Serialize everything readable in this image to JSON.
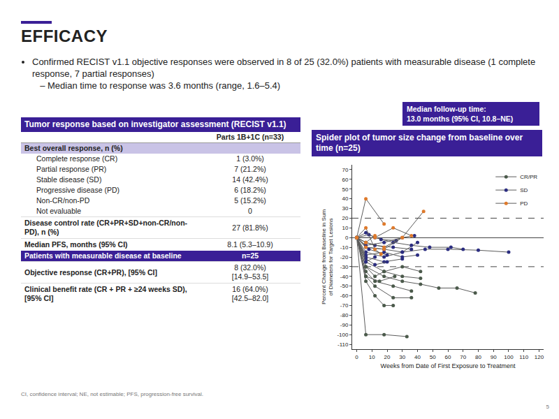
{
  "slide": {
    "title": "EFFICACY",
    "bullets": [
      {
        "text": "Confirmed RECIST v1.1 objective responses were observed in 8 of 25 (32.0%) patients with measurable disease (1 complete response, 7 partial responses)",
        "sub": [
          "Median time to response was 3.6 months (range, 1.6–5.4)"
        ]
      }
    ],
    "followup_box": [
      "Median follow-up time:",
      "13.0 months (95% CI, 10.8–NE)"
    ],
    "table": {
      "title": "Tumor response based on investigator assessment (RECIST v1.1)",
      "column_header": "Parts 1B+1C (n=33)",
      "sections": [
        {
          "heading": "Best overall response, n (%)",
          "items": [
            {
              "label": "Complete response (CR)",
              "value": [
                "1 (3.0%)"
              ]
            },
            {
              "label": "Partial response (PR)",
              "value": [
                "7 (21.2%)"
              ]
            },
            {
              "label": "Stable disease (SD)",
              "value": [
                "14 (42.4%)"
              ]
            },
            {
              "label": "Progressive disease (PD)",
              "value": [
                "6 (18.2%)"
              ]
            },
            {
              "label": "Non-CR/non-PD",
              "value": [
                "5 (15.2%)"
              ]
            },
            {
              "label": "Not evaluable",
              "value": [
                "0"
              ]
            }
          ],
          "rows": [
            {
              "label": "Disease control rate (CR+PR+SD+non-CR/non-PD), n (%)",
              "value": [
                "27 (81.8%)"
              ]
            },
            {
              "label": "Median PFS, months (95% CI)",
              "value": [
                "8.1 (5.3–10.9)"
              ]
            }
          ]
        },
        {
          "heading": "Patients with measurable disease at baseline",
          "heading_value": "n=25",
          "items": [],
          "rows": [
            {
              "label": "Objective response (CR+PR), [95% CI]",
              "value": [
                "8 (32.0%)",
                "[14.9–53.5]"
              ]
            },
            {
              "label": "Clinical benefit rate (CR + PR + ≥24 weeks SD), [95% CI]",
              "value": [
                "16 (64.0%)",
                "[42.5–82.0]"
              ]
            }
          ]
        }
      ]
    },
    "footnote": "CI, confidence interval; NE, not estimable; PFS, progression-free survival.",
    "page_number": "5"
  },
  "chart_data": {
    "type": "line",
    "title": "Spider plot of tumor size change from baseline over time (n=25)",
    "x_label": "Weeks from Date of First Exposure to Treatment",
    "y_label": "Percent Change from Baseline in Sum of Diameters for Target Lesions",
    "xlim": [
      -3,
      123
    ],
    "xticks": [
      0,
      10,
      20,
      30,
      40,
      50,
      60,
      70,
      80,
      90,
      100,
      110,
      120
    ],
    "ylim": [
      -115,
      75
    ],
    "yticks": [
      -110,
      -100,
      -90,
      -80,
      -70,
      -60,
      -50,
      -40,
      -30,
      -20,
      -10,
      0,
      10,
      20,
      30,
      40,
      50,
      60,
      70
    ],
    "reference_lines": [
      20,
      -30
    ],
    "grid": false,
    "legend": "top right",
    "marker": "circle",
    "series": [
      {
        "name": "CR/PR",
        "color": "#4b5a4b",
        "x": [
          0,
          6,
          18,
          33
        ],
        "values": [
          0,
          -100,
          -100,
          -102
        ]
      },
      {
        "name": "CR/PR",
        "color": "#4b5a4b",
        "x": [
          0,
          6,
          12,
          18,
          24
        ],
        "values": [
          0,
          -45,
          -60,
          -70,
          -70
        ]
      },
      {
        "name": "CR/PR",
        "color": "#4b5a4b",
        "x": [
          0,
          6,
          12,
          24,
          36
        ],
        "values": [
          0,
          -40,
          -50,
          -62,
          -62
        ]
      },
      {
        "name": "CR/PR",
        "color": "#4b5a4b",
        "x": [
          0,
          6,
          18,
          30,
          42,
          54,
          66,
          78
        ],
        "values": [
          0,
          -30,
          -40,
          -45,
          -48,
          -52,
          -52,
          -57
        ]
      },
      {
        "name": "CR/PR",
        "color": "#4b5a4b",
        "x": [
          0,
          6,
          12,
          24,
          36
        ],
        "values": [
          0,
          -35,
          -45,
          -50,
          -55
        ]
      },
      {
        "name": "CR/PR",
        "color": "#4b5a4b",
        "x": [
          0,
          6,
          18,
          30,
          42
        ],
        "values": [
          0,
          -25,
          -35,
          -40,
          -42
        ]
      },
      {
        "name": "CR/PR",
        "color": "#4b5a4b",
        "x": [
          0,
          6,
          12,
          18,
          30,
          42
        ],
        "values": [
          0,
          -30,
          -40,
          -35,
          -30,
          -35
        ]
      },
      {
        "name": "CR/PR",
        "color": "#4b5a4b",
        "x": [
          0,
          6,
          15,
          25
        ],
        "values": [
          0,
          -40,
          -45,
          -40
        ]
      },
      {
        "name": "SD",
        "color": "#2b2d80",
        "x": [
          0,
          6,
          18,
          30,
          45,
          60,
          80,
          100
        ],
        "values": [
          0,
          -10,
          -12,
          -15,
          -12,
          -12,
          -13,
          -15
        ]
      },
      {
        "name": "SD",
        "color": "#2b2d80",
        "x": [
          0,
          6,
          18,
          30,
          40
        ],
        "values": [
          0,
          -15,
          -20,
          -15,
          -5
        ]
      },
      {
        "name": "SD",
        "color": "#2b2d80",
        "x": [
          0,
          6,
          12,
          24,
          36
        ],
        "values": [
          0,
          -5,
          -8,
          -10,
          -12
        ]
      },
      {
        "name": "SD",
        "color": "#2b2d80",
        "x": [
          0,
          6,
          18,
          30
        ],
        "values": [
          0,
          -20,
          -25,
          -22
        ]
      },
      {
        "name": "SD",
        "color": "#2b2d80",
        "x": [
          0,
          8,
          20
        ],
        "values": [
          0,
          -12,
          -18
        ]
      },
      {
        "name": "SD",
        "color": "#2b2d80",
        "x": [
          0,
          6,
          12,
          24,
          36,
          48,
          62,
          70
        ],
        "values": [
          0,
          5,
          0,
          -5,
          -8,
          -10,
          -10,
          -12
        ]
      },
      {
        "name": "SD",
        "color": "#2b2d80",
        "x": [
          0,
          6,
          18,
          30,
          40
        ],
        "values": [
          0,
          -18,
          -15,
          -20,
          -18
        ]
      },
      {
        "name": "SD",
        "color": "#2b2d80",
        "x": [
          0,
          6,
          12,
          20
        ],
        "values": [
          0,
          -22,
          -28,
          -25
        ]
      },
      {
        "name": "SD",
        "color": "#2b2d80",
        "x": [
          0,
          8,
          16,
          26
        ],
        "values": [
          0,
          3,
          -2,
          -3
        ]
      },
      {
        "name": "SD",
        "color": "#2b2d80",
        "x": [
          0,
          6,
          18,
          30,
          38
        ],
        "values": [
          0,
          -8,
          -5,
          0,
          2
        ]
      },
      {
        "name": "SD",
        "color": "#2b2d80",
        "x": [
          0,
          6,
          12
        ],
        "values": [
          0,
          -25,
          -20
        ]
      },
      {
        "name": "PD",
        "color": "#de7a2c",
        "x": [
          0,
          6,
          18
        ],
        "values": [
          0,
          40,
          14
        ]
      },
      {
        "name": "PD",
        "color": "#de7a2c",
        "x": [
          0,
          6,
          18,
          30,
          44
        ],
        "values": [
          0,
          -5,
          -10,
          0,
          27
        ]
      },
      {
        "name": "PD",
        "color": "#de7a2c",
        "x": [
          0,
          12,
          24,
          36
        ],
        "values": [
          0,
          0,
          10,
          2
        ]
      },
      {
        "name": "PD",
        "color": "#de7a2c",
        "x": [
          0,
          6,
          18,
          30
        ],
        "values": [
          0,
          -10,
          -12,
          0
        ]
      },
      {
        "name": "PD",
        "color": "#de7a2c",
        "x": [
          0,
          6,
          12,
          16
        ],
        "values": [
          0,
          10,
          -12,
          -17
        ]
      },
      {
        "name": "PD",
        "color": "#de7a2c",
        "x": [
          0,
          6,
          12
        ],
        "values": [
          0,
          -5,
          2
        ]
      }
    ]
  }
}
